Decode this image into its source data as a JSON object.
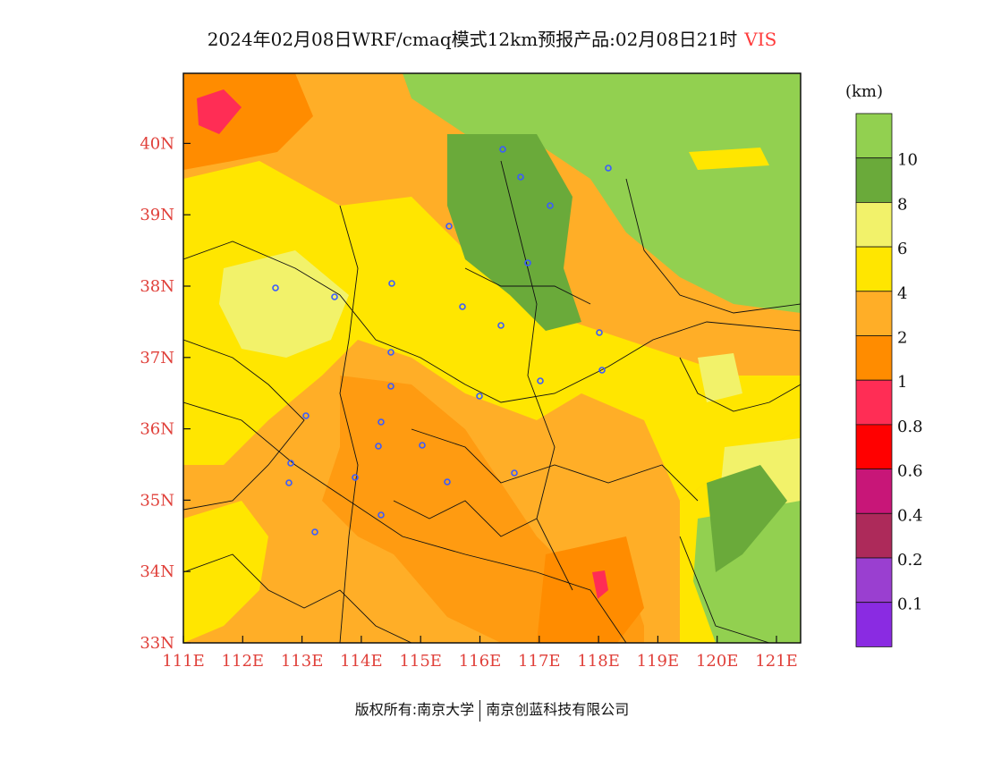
{
  "title": {
    "main": "2024年02月08日WRF/cmaq模式12km预报产品:02月08日21时",
    "variable": "VIS"
  },
  "map": {
    "lon_labels": [
      "111E",
      "112E",
      "113E",
      "114E",
      "115E",
      "116E",
      "117E",
      "118E",
      "119E",
      "120E",
      "121E"
    ],
    "lat_labels": [
      "33N",
      "34N",
      "35N",
      "36N",
      "37N",
      "38N",
      "39N",
      "40N"
    ]
  },
  "colorbar": {
    "unit": "(km)",
    "levels": [
      {
        "label": "",
        "color": "#92d050"
      },
      {
        "label": "10",
        "color": "#6aaa3a"
      },
      {
        "label": "8",
        "color": "#f2f26a"
      },
      {
        "label": "6",
        "color": "#ffe600"
      },
      {
        "label": "4",
        "color": "#ffae27"
      },
      {
        "label": "2",
        "color": "#ff8c00"
      },
      {
        "label": "1",
        "color": "#ff2d55"
      },
      {
        "label": "0.8",
        "color": "#ff0000"
      },
      {
        "label": "0.6",
        "color": "#c81678"
      },
      {
        "label": "0.4",
        "color": "#ad2a5a"
      },
      {
        "label": "0.2",
        "color": "#9a3fd0"
      },
      {
        "label": "0.1",
        "color": "#8a2be2"
      }
    ]
  },
  "footer": {
    "left": "版权所有:南京大学",
    "right": "南京创蓝科技有限公司"
  }
}
